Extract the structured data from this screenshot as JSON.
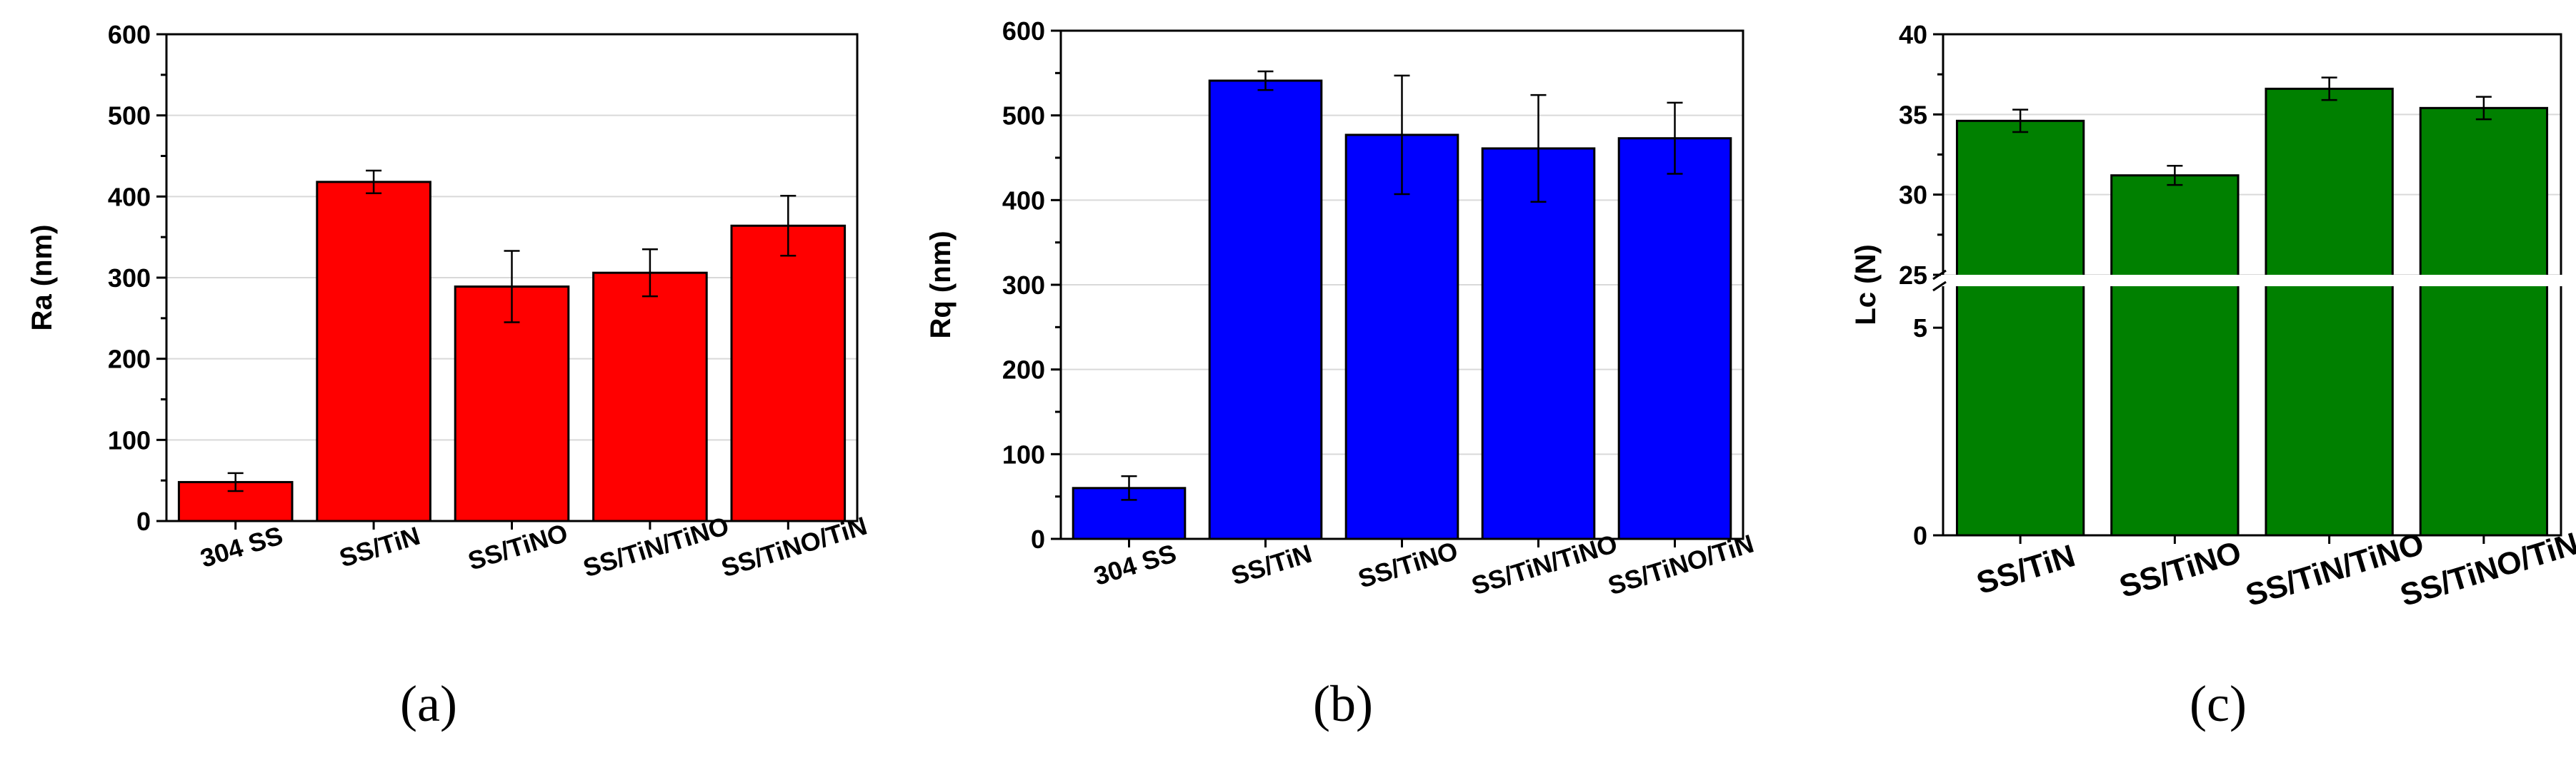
{
  "chart_data": [
    {
      "type": "bar",
      "panel_label": "(a)",
      "ylabel": "Ra (nm)",
      "xlabel": "",
      "categories": [
        "304 SS",
        "SS/TiN",
        "SS/TiNO",
        "SS/TiN/TiNO",
        "SS/TiNO/TiN"
      ],
      "values": [
        48,
        418,
        289,
        306,
        364
      ],
      "errors": [
        11,
        14,
        44,
        29,
        37
      ],
      "yticks": [
        0,
        100,
        200,
        300,
        400,
        500,
        600
      ],
      "ylim": [
        0,
        600
      ],
      "color": "#ff0000",
      "grid": true
    },
    {
      "type": "bar",
      "panel_label": "(b)",
      "ylabel": "Rq (nm)",
      "xlabel": "",
      "categories": [
        "304 SS",
        "SS/TiN",
        "SS/TiNO",
        "SS/TiN/TiNO",
        "SS/TiNO/TiN"
      ],
      "values": [
        60,
        541,
        477,
        461,
        473
      ],
      "errors": [
        14,
        11,
        70,
        63,
        42
      ],
      "yticks": [
        0,
        100,
        200,
        300,
        400,
        500,
        600
      ],
      "ylim": [
        0,
        600
      ],
      "color": "#0000ff",
      "grid": true
    },
    {
      "type": "bar",
      "panel_label": "(c)",
      "ylabel": "Lc (N)",
      "xlabel": "",
      "categories": [
        "SS/TiN",
        "SS/TiNO",
        "SS/TiN/TiNO",
        "SS/TiNO/TiN"
      ],
      "values": [
        34.6,
        31.2,
        36.6,
        35.4
      ],
      "errors": [
        0.7,
        0.6,
        0.7,
        0.7
      ],
      "ylim": [
        0,
        40
      ],
      "axis_break": [
        6,
        25
      ],
      "yticks_lower": [
        0,
        5
      ],
      "yticks_upper": [
        25,
        30,
        35,
        40
      ],
      "color": "#008000",
      "grid": true
    }
  ]
}
